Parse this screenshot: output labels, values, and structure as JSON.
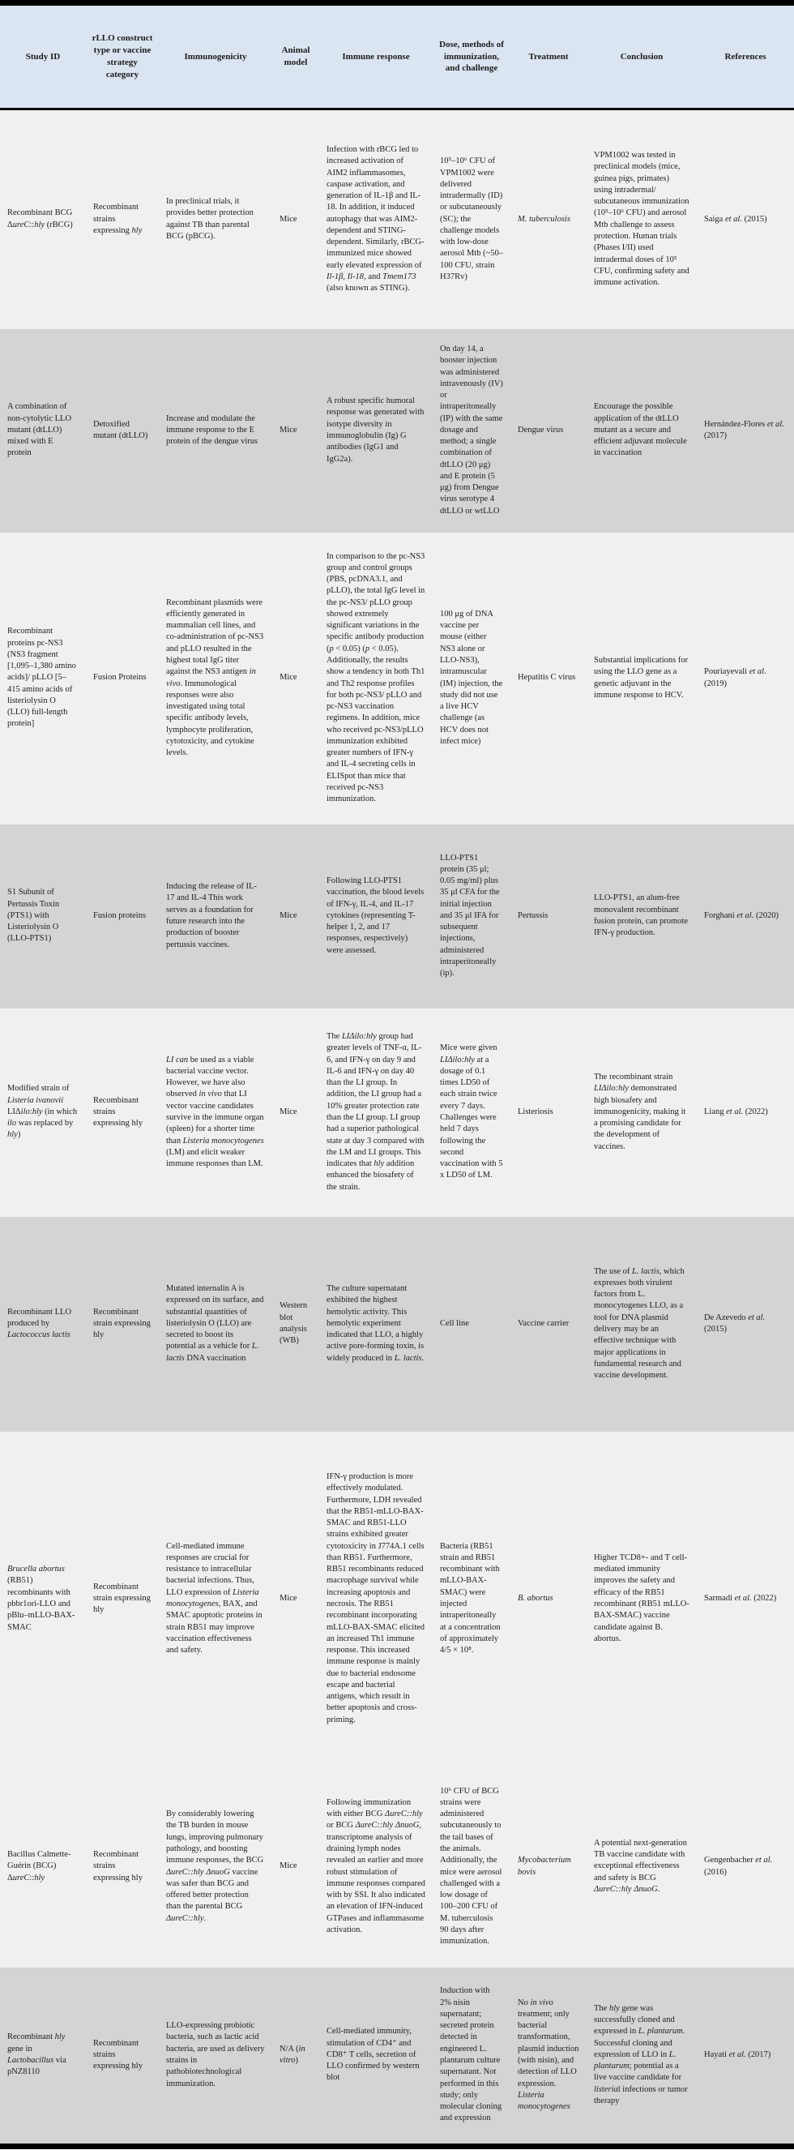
{
  "colors": {
    "header_bg": "#dbe5f1",
    "row_light": "#f2f0ef",
    "row_gray": "#d6d4d3",
    "rule": "#000000"
  },
  "table": {
    "columns": [
      {
        "key": "study_id",
        "label": "Study ID"
      },
      {
        "key": "construct",
        "label": "rLLO construct type or vaccine strategy category"
      },
      {
        "key": "immunogenicity",
        "label": "Immunogenicity"
      },
      {
        "key": "animal_model",
        "label": "Animal model"
      },
      {
        "key": "immune_response",
        "label": "Immune response"
      },
      {
        "key": "dose",
        "label": "Dose, methods of immunization, and challenge"
      },
      {
        "key": "treatment",
        "label": "Treatment"
      },
      {
        "key": "conclusion",
        "label": "Conclusion"
      },
      {
        "key": "references",
        "label": "References"
      }
    ],
    "rows": [
      {
        "study_id": "Recombinant BCG Δ*ureC*::*hly* (rBCG)",
        "construct": "Recombinant strains expressing *hly*",
        "immunogenicity": "In preclinical trials, it provides better protection against TB than parental BCG (pBCG).",
        "animal_model": "Mice",
        "immune_response": "Infection with rBCG led to increased activation of AIM2 inflammasomes, caspase activation, and generation of IL-1β and IL-18. In addition, it induced autophagy that was AIM2-dependent and STING-dependent. Similarly, rBCG-immunized mice showed early elevated expression of *Il-1β*, *Il-18*, and *Tmem173* (also known as STING).",
        "dose": "10⁵–10⁶ CFU of VPM1002 were delivered intradermally (ID) or subcutaneously (SC); the challenge models with low-dose aerosol Mtb (~50–100 CFU, strain H37Rv)",
        "treatment": "*M. tuberculosis*",
        "conclusion": "VPM1002 was tested in preclinical models (mice, guinea pigs, primates) using intradermal/ subcutaneous immunization (10⁵–10⁶ CFU) and aerosol Mtb challenge to assess protection. Human trials (Phases I/II) used intradermal doses of 10⁵ CFU, confirming safety and immune activation.",
        "references": "Saiga *et al.* (2015)"
      },
      {
        "study_id": "A combination of non-cytolytic LLO mutant (dtLLO) mixed with E protein",
        "construct": "Detoxified mutant (dtLLO)",
        "immunogenicity": "Increase and modulate the immune response to the E protein of the dengue virus",
        "animal_model": "Mice",
        "immune_response": "A robust specific humoral response was generated with isotype diversity in immunoglobulin (Ig) G antibodies (IgG1 and IgG2a).",
        "dose": "On day 14, a booster injection was administered intravenously (IV) or intraperitoneally (IP) with the same dosage and method; a single combination of dtLLO (20 μg) and E protein (5 μg) from Dengue virus serotype 4 dtLLO or wtLLO",
        "treatment": "Dengue virus",
        "conclusion": "Encourage the possible application of the dtLLO mutant as a secure and efficient adjuvant molecule in vaccination",
        "references": "Hernández-Flores *et al.* (2017)"
      },
      {
        "study_id": "Recombinant proteins pc-NS3 (NS3 fragment [1,095–1,380 amino acids]/ pLLO [5–415 amino acids of listeriolysin O (LLO) full-length protein]",
        "construct": "Fusion Proteins",
        "immunogenicity": "Recombinant plasmids were efficiently generated in mammalian cell lines, and co-administration of pc-NS3 and pLLO resulted in the highest total IgG titer against the NS3 antigen *in vivo*. Immunological responses were also investigated using total specific antibody levels, lymphocyte proliferation, cytotoxicity, and cytokine levels.",
        "animal_model": "Mice",
        "immune_response": "In comparison to the pc-NS3 group and control groups (PBS, pcDNA3.1, and pLLO), the total IgG level in the pc-NS3/ pLLO group showed extremely significant variations in the specific antibody production (*p* < 0.05) (*p* < 0.05). Additionally, the results show a tendency in both Th1 and Th2 response profiles for both pc-NS3/ pLLO and pc-NS3 vaccination regimens. In addition, mice who received pc-NS3/pLLO immunization exhibited greater numbers of IFN-γ and IL-4 secreting cells in ELISpot than mice that received pc-NS3 immunization.",
        "dose": "100 μg of DNA vaccine per mouse (either NS3 alone or LLO-NS3), intramuscular (IM) injection, the study did not use a live HCV challenge (as HCV does not infect mice)",
        "treatment": "Hepatitis C virus",
        "conclusion": "Substantial implications for using the LLO gene as a genetic adjuvant in the immune response to HCV.",
        "references": "Pouriayevali *et al.* (2019)"
      },
      {
        "study_id": "S1 Subunit of Pertussis Toxin (PTS1) with Listeriolysin O (LLO-PTS1)",
        "construct": "Fusion proteins",
        "immunogenicity": "Inducing the release of IL-17 and IL-4 This work serves as a foundation for future research into the production of booster pertussis vaccines.",
        "animal_model": "Mice",
        "immune_response": "Following LLO-PTS1 vaccination, the blood levels of IFN-γ, IL-4, and IL-17 cytokines (representing T-helper 1, 2, and 17 responses, respectively) were assessed.",
        "dose": "LLO-PTS1 protein (35 μl; 0.05 mg/ml) plus 35 μl CFA for the initial injection and 35 μl IFA for subsequent injections, administered intraperitoneally (ip).",
        "treatment": "Pertussis",
        "conclusion": "LLO-PTS1, an alum-free monovalent recombinant fusion protein, can promote IFN-γ production.",
        "references": "Forghani *et al.* (2020)"
      },
      {
        "study_id": "Modified strain of *Listeria ivanovii* LIΔ*ilo*:*hly* (in which *ilo* was replaced by *hly*)",
        "construct": "Recombinant strains expressing hly",
        "immunogenicity": "*LI can* be used as a viable bacterial vaccine vector. However, we have also observed *in vivo* that LI vector vaccine candidates survive in the immune organ (spleen) for a shorter time than *Listeria monocytogenes* (LM) and elicit weaker immune responses than LM.",
        "animal_model": "Mice",
        "immune_response": "The *LIΔilo:hly* group had greater levels of TNF-α, IL-6, and IFN-γ on day 9 and IL-6 and IFN-γ on day 40 than the LI group. In addition, the LI group had a 10% greater protection rate than the LI group. LI group had a superior pathological state at day 3 compared with the LM and LI groups. This indicates that *hly* addition enhanced the biosafety of the strain.",
        "dose": "Mice were given *LIΔilo:hly* at a dosage of 0.1 times LD50 of each strain twice every 7 days. Challenges were held 7 days following the second vaccination with 5 x LD50 of LM.",
        "treatment": "Listeriosis",
        "conclusion": "The recombinant strain *LIΔilo:hly* demonstrated high biosafety and immunogenicity, making it a promising candidate for the development of vaccines.",
        "references": "Liang *et al.* (2022)"
      },
      {
        "study_id": "Recombinant LLO produced by *Lactococcus lactis*",
        "construct": "Recombinant strain expressing hly",
        "immunogenicity": "Mutated internalin A is expressed on its surface, and substantial quantities of listeriolysin O (LLO) are secreted to boost its potential as a vehicle for *L. lactis* DNA vaccination",
        "animal_model": "Western blot analysis (WB)",
        "immune_response": "The culture supernatant exhibited the highest hemolytic activity. This hemolytic experiment indicated that LLO, a highly active pore-forming toxin, is widely produced in *L. lactis*.",
        "dose": "Cell line",
        "treatment": "Vaccine carrier",
        "conclusion": "The use of *L. lactis*, which expresses both virulent factors from L. monocytogenes LLO, as a tool for DNA plasmid delivery may be an effective technique with major applications in fundamental research and vaccine development.",
        "references": "De Azevedo *et al.* (2015)"
      },
      {
        "study_id": "*Brucella abortus* (RB51) recombinants with pbbr1ori-LLO and pBlu–mLLO-BAX-SMAC",
        "construct": "Recombinant strain expressing hly",
        "immunogenicity": "Cell-mediated immune responses are crucial for resistance to intracellular bacterial infections. Thus, LLO expression of *Listeria monocytogenes*, BAX, and SMAC apoptotic proteins in strain RB51 may improve vaccination effectiveness and safety.",
        "animal_model": "Mice",
        "immune_response": "IFN-γ production is more effectively modulated. Furthermore, LDH revealed that the RB51-mLLO-BAX-SMAC and RB51-LLO strains exhibited greater cytotoxicity in J774A.1 cells than RB51. Furthermore, RB51 recombinants reduced macrophage survival while increasing apoptosis and necrosis. The RB51 recombinant incorporating mLLO-BAX-SMAC elicited an increased Th1 immune response. This increased immune response is mainly due to bacterial endosome escape and bacterial antigens, which result in better apoptosis and cross-priming.",
        "dose": "Bacteria (RB51 strain and RB51 recombinant with mLLO-BAX-SMAC) were injected intraperitoneally at a concentration of approximately 4/5 × 10⁸.",
        "treatment": "*B. abortus*",
        "conclusion": "Higher TCD8+- and T cell-mediated immunity improves the safety and efficacy of the RB51 recombinant (RB51 mLLO-BAX-SMAC) vaccine candidate against B. abortus.",
        "references": "Sarmadi *et al.* (2022)"
      },
      {
        "study_id": "Bacillus Calmette-Guérin (BCG) Δ*ureC*::*hly*",
        "construct": "Recombinant strains expressing hly",
        "immunogenicity": "By considerably lowering the TB burden in mouse lungs, improving pulmonary pathology, and boosting immune responses, the BCG *ΔureC::hly ΔnuoG* vaccine was safer than BCG and offered better protection than the parental BCG *ΔureC::hly*.",
        "animal_model": "Mice",
        "immune_response": "Following immunization with either BCG *ΔureC::hly* or BCG *ΔureC::hly ΔnuoG*, transcriptome analysis of draining lymph nodes revealed an earlier and more robust stimulation of immune responses compared with by SSI. It also indicated an elevation of IFN-induced GTPases and inflammasome activation.",
        "dose": "10⁶ CFU of BCG strains were administered subcutaneously to the tail bases of the animals. Additionally, the mice were aerosol challenged with a low dosage of 100–200 CFU of M. tuberculosis 90 days after immunization.",
        "treatment": "*Mycobacterium bovis*",
        "conclusion": "A potential next-generation TB vaccine candidate with exceptional effectiveness and safety is BCG *ΔureC::hly ΔnuoG*.",
        "references": "Gengenbacher *et al.* (2016)"
      },
      {
        "study_id": "Recombinant *hly* gene in *Lactobacillus* via pNZ8110",
        "construct": "Recombinant strains expressing hly",
        "immunogenicity": "LLO-expressing probiotic bacteria, such as lactic acid bacteria, are used as delivery strains in pathobiotechnological immunization.",
        "animal_model": "N/A (*in vitro*)",
        "immune_response": "Cell-mediated immunity, stimulation of CD4⁺ and CD8⁺ T cells, secretion of LLO confirmed by western blot",
        "dose": "Induction with 2% nisin supernatant; secreted protein detected in engineered L. plantarum culture supernatant. Not performed in this study; only molecular cloning and expression",
        "treatment": "No *in vivo* treatment; only bacterial transformation, plasmid induction (with nisin), and detection of LLO expression. *Listeria monocytogenes*",
        "conclusion": "The *hly* gene was successfully cloned and expressed in *L. plantarum*. Successful cloning and expression of LLO in *L. plantarum*; potential as a live vaccine candidate for *listeria*l infections or tumor therapy",
        "references": "Hayati *et al.* (2017)"
      }
    ]
  }
}
